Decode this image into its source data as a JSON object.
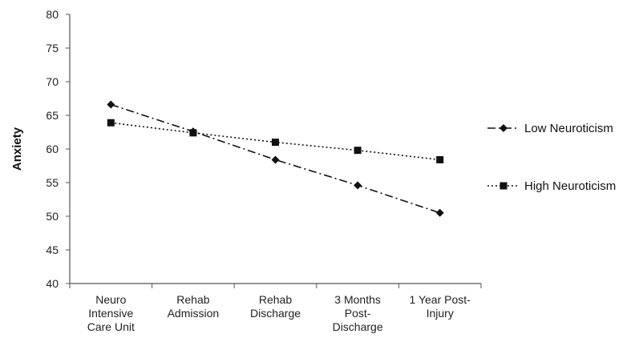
{
  "chart_data": {
    "type": "line",
    "title": "",
    "xlabel": "",
    "ylabel": "Anxiety",
    "ylim": [
      40,
      80
    ],
    "yticks": [
      40,
      45,
      50,
      55,
      60,
      65,
      70,
      75,
      80
    ],
    "grid": false,
    "legend_position": "right",
    "categories": [
      [
        "Neuro",
        "Intensive",
        "Care Unit"
      ],
      [
        "Rehab",
        "Admission"
      ],
      [
        "Rehab",
        "Discharge"
      ],
      [
        "3 Months",
        "Post-",
        "Discharge"
      ],
      [
        "1 Year Post-",
        "Injury"
      ]
    ],
    "series": [
      {
        "name": "Low Neuroticism",
        "values": [
          66.6,
          62.6,
          58.4,
          54.6,
          50.5
        ],
        "marker": "diamond",
        "line_style": "dash-dot",
        "color": "#111111"
      },
      {
        "name": "High Neuroticism",
        "values": [
          63.9,
          62.4,
          61.0,
          59.8,
          58.4
        ],
        "marker": "square",
        "line_style": "dotted",
        "color": "#111111"
      }
    ]
  }
}
